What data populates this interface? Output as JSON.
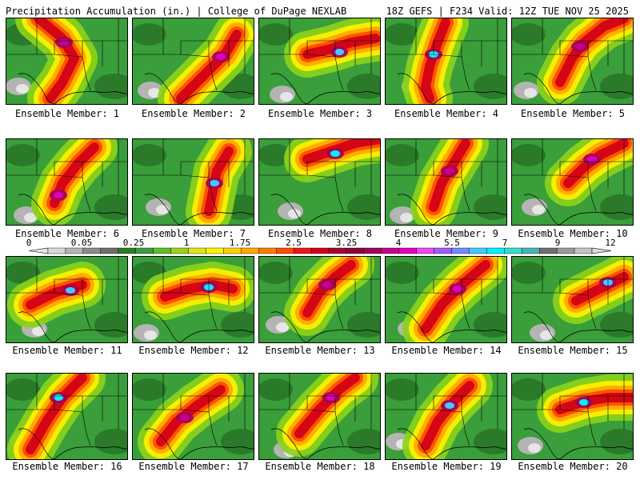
{
  "header": {
    "title_left": "Precipitation Accumulation (in.) | College of DuPage NEXLAB",
    "title_right": "18Z GEFS | F234 Valid: 12Z TUE NOV 25 2025"
  },
  "colorbar": {
    "tick_labels": [
      "0",
      "0.05",
      "0.25",
      "1",
      "1.75",
      "2.5",
      "3.25",
      "4",
      "5.5",
      "7",
      "9",
      "12"
    ],
    "colors": [
      "#d8d8d8",
      "#b4b4b4",
      "#8c8c8c",
      "#6e6e6e",
      "#2a7a2a",
      "#3a9e3a",
      "#5cbf2a",
      "#9ad21a",
      "#dde616",
      "#fff200",
      "#ffd000",
      "#ffa800",
      "#ff7c00",
      "#ff4a00",
      "#f01414",
      "#d00018",
      "#a8002c",
      "#8a0038",
      "#a0005a",
      "#c8008c",
      "#e000c0",
      "#f046f0",
      "#a05aff",
      "#6c8cff",
      "#46c8ff",
      "#00f0ff",
      "#32dcd2",
      "#48b4b4",
      "#707070",
      "#9a9a9a",
      "#c4c4c4"
    ]
  },
  "panels": [
    {
      "label": "Ensemble Member: 1"
    },
    {
      "label": "Ensemble Member: 2"
    },
    {
      "label": "Ensemble Member: 3"
    },
    {
      "label": "Ensemble Member: 4"
    },
    {
      "label": "Ensemble Member: 5"
    },
    {
      "label": "Ensemble Member: 6"
    },
    {
      "label": "Ensemble Member: 7"
    },
    {
      "label": "Ensemble Member: 8"
    },
    {
      "label": "Ensemble Member: 9"
    },
    {
      "label": "Ensemble Member: 10"
    },
    {
      "label": "Ensemble Member: 11"
    },
    {
      "label": "Ensemble Member: 12"
    },
    {
      "label": "Ensemble Member: 13"
    },
    {
      "label": "Ensemble Member: 14"
    },
    {
      "label": "Ensemble Member: 15"
    },
    {
      "label": "Ensemble Member: 16"
    },
    {
      "label": "Ensemble Member: 17"
    },
    {
      "label": "Ensemble Member: 18"
    },
    {
      "label": "Ensemble Member: 19"
    },
    {
      "label": "Ensemble Member: 20"
    }
  ]
}
